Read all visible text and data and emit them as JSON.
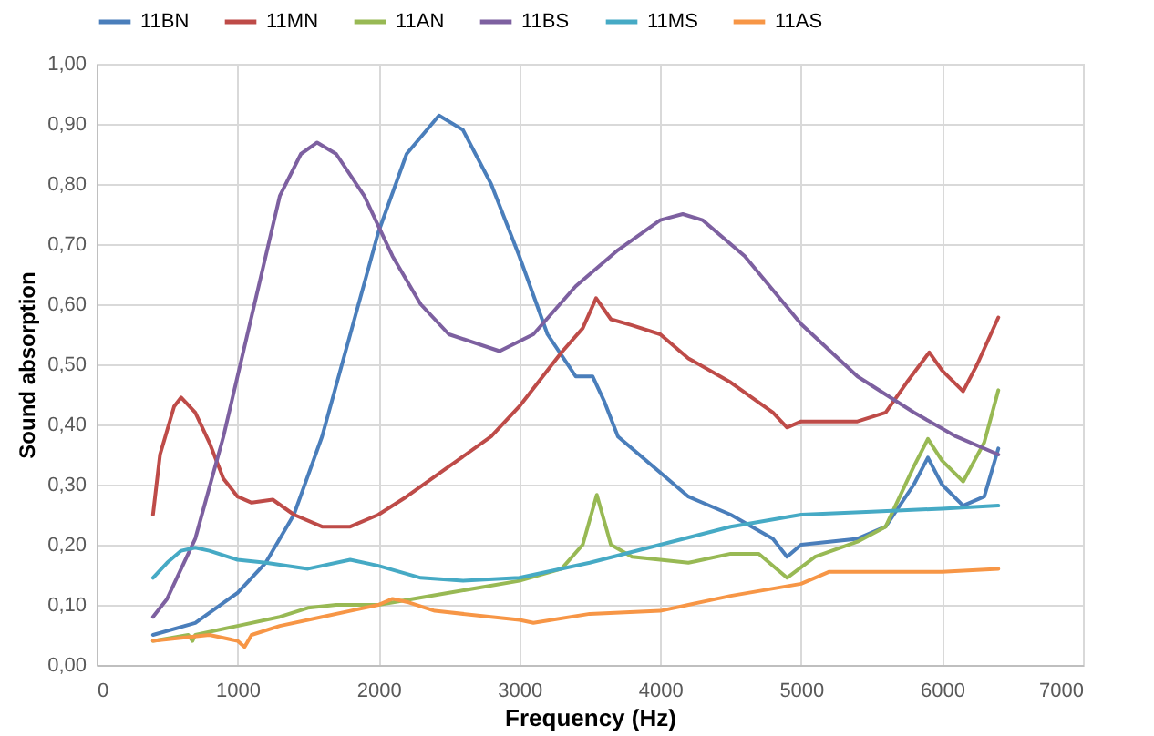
{
  "chart_data": {
    "type": "line",
    "xlabel": "Frequency  (Hz)",
    "ylabel": "Sound absorption",
    "xlim": [
      0,
      7000
    ],
    "xticks": [
      0,
      1000,
      2000,
      3000,
      4000,
      5000,
      6000,
      7000
    ],
    "ylim": [
      0,
      1
    ],
    "yticks": [
      {
        "value": 0,
        "label": "0,00"
      },
      {
        "value": 0.1,
        "label": "0,10"
      },
      {
        "value": 0.2,
        "label": "0,20"
      },
      {
        "value": 0.3,
        "label": "0,30"
      },
      {
        "value": 0.4,
        "label": "0,40"
      },
      {
        "value": 0.5,
        "label": "0,50"
      },
      {
        "value": 0.6,
        "label": "0,60"
      },
      {
        "value": 0.7,
        "label": "0,70"
      },
      {
        "value": 0.8,
        "label": "0,80"
      },
      {
        "value": 0.9,
        "label": "0,90"
      },
      {
        "value": 1,
        "label": "1,00"
      }
    ],
    "grid": true,
    "legend": "top",
    "marker": "none",
    "line_style": "solid",
    "series": [
      {
        "name": "11BN",
        "color": "#4a7ebb",
        "x": [
          400,
          700,
          1000,
          1200,
          1400,
          1600,
          1800,
          2000,
          2200,
          2430,
          2600,
          2800,
          3000,
          3200,
          3400,
          3520,
          3600,
          3700,
          4000,
          4200,
          4500,
          4800,
          4900,
          5000,
          5400,
          5600,
          5800,
          5900,
          6000,
          6150,
          6300,
          6400
        ],
        "values": [
          0.05,
          0.07,
          0.12,
          0.17,
          0.25,
          0.38,
          0.55,
          0.72,
          0.85,
          0.914,
          0.89,
          0.8,
          0.68,
          0.55,
          0.48,
          0.48,
          0.44,
          0.38,
          0.32,
          0.28,
          0.25,
          0.21,
          0.18,
          0.2,
          0.21,
          0.23,
          0.3,
          0.345,
          0.3,
          0.265,
          0.28,
          0.36
        ]
      },
      {
        "name": "11MN",
        "color": "#be4b48",
        "x": [
          400,
          450,
          550,
          600,
          700,
          800,
          900,
          1000,
          1100,
          1250,
          1400,
          1600,
          1800,
          2000,
          2200,
          2500,
          2800,
          3000,
          3300,
          3450,
          3545,
          3650,
          3800,
          4000,
          4200,
          4500,
          4800,
          4900,
          5000,
          5400,
          5600,
          5750,
          5910,
          6000,
          6150,
          6250,
          6400
        ],
        "values": [
          0.25,
          0.35,
          0.43,
          0.445,
          0.42,
          0.37,
          0.31,
          0.28,
          0.27,
          0.275,
          0.25,
          0.23,
          0.23,
          0.25,
          0.28,
          0.33,
          0.38,
          0.43,
          0.52,
          0.56,
          0.61,
          0.575,
          0.565,
          0.55,
          0.51,
          0.47,
          0.42,
          0.395,
          0.405,
          0.405,
          0.42,
          0.47,
          0.52,
          0.49,
          0.455,
          0.5,
          0.578
        ]
      },
      {
        "name": "11AN",
        "color": "#98b954",
        "x": [
          400,
          650,
          680,
          700,
          1000,
          1300,
          1500,
          1700,
          2000,
          2500,
          3000,
          3300,
          3450,
          3550,
          3650,
          3800,
          4200,
          4500,
          4700,
          4900,
          5100,
          5400,
          5600,
          5800,
          5900,
          6000,
          6150,
          6300,
          6400
        ],
        "values": [
          0.04,
          0.05,
          0.04,
          0.05,
          0.065,
          0.08,
          0.095,
          0.1,
          0.1,
          0.12,
          0.14,
          0.16,
          0.2,
          0.283,
          0.2,
          0.18,
          0.17,
          0.185,
          0.185,
          0.145,
          0.18,
          0.205,
          0.23,
          0.33,
          0.376,
          0.34,
          0.305,
          0.37,
          0.457
        ]
      },
      {
        "name": "11BS",
        "color": "#7d60a0",
        "x": [
          400,
          500,
          700,
          900,
          1100,
          1300,
          1450,
          1565,
          1700,
          1900,
          2100,
          2300,
          2500,
          2860,
          3100,
          3400,
          3700,
          4000,
          4160,
          4300,
          4600,
          5000,
          5400,
          5800,
          6100,
          6400
        ],
        "values": [
          0.08,
          0.11,
          0.21,
          0.38,
          0.58,
          0.78,
          0.85,
          0.869,
          0.85,
          0.78,
          0.68,
          0.6,
          0.55,
          0.522,
          0.55,
          0.63,
          0.69,
          0.74,
          0.75,
          0.74,
          0.68,
          0.567,
          0.48,
          0.42,
          0.38,
          0.35
        ]
      },
      {
        "name": "11MS",
        "color": "#46aac5",
        "x": [
          400,
          500,
          600,
          700,
          800,
          1000,
          1200,
          1500,
          1800,
          2000,
          2300,
          2600,
          3000,
          3500,
          4000,
          4500,
          5000,
          5500,
          6000,
          6400
        ],
        "values": [
          0.145,
          0.17,
          0.19,
          0.195,
          0.19,
          0.175,
          0.17,
          0.16,
          0.175,
          0.165,
          0.145,
          0.14,
          0.145,
          0.17,
          0.2,
          0.23,
          0.25,
          0.255,
          0.26,
          0.265
        ]
      },
      {
        "name": "11AS",
        "color": "#f79646",
        "x": [
          400,
          600,
          800,
          900,
          1000,
          1050,
          1100,
          1300,
          1600,
          1800,
          2000,
          2100,
          2200,
          2400,
          3000,
          3100,
          3500,
          4000,
          4200,
          4500,
          5000,
          5200,
          5500,
          6000,
          6400
        ],
        "values": [
          0.04,
          0.045,
          0.05,
          0.045,
          0.04,
          0.03,
          0.05,
          0.065,
          0.08,
          0.09,
          0.1,
          0.11,
          0.105,
          0.09,
          0.075,
          0.07,
          0.085,
          0.09,
          0.1,
          0.115,
          0.135,
          0.155,
          0.155,
          0.155,
          0.16
        ]
      }
    ]
  }
}
